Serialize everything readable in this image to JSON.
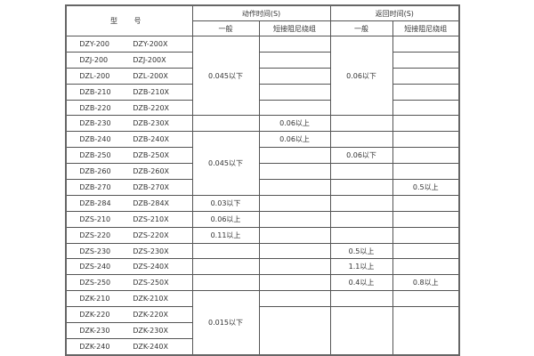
{
  "header": {
    "model": "型 号",
    "action_time": "动作时间(S)",
    "return_time": "返回时间(S)",
    "general": "一般",
    "short_damping": "短接阻尼绕组"
  },
  "rows": [
    {
      "model": [
        "DZY-200",
        "DZY-200X"
      ],
      "cells": [
        {
          "text": "0.045以下",
          "rowspan": 5
        },
        {
          "text": ""
        },
        {
          "text": "0.06以下",
          "rowspan": 5
        },
        {
          "text": ""
        }
      ]
    },
    {
      "model": [
        "DZJ-200",
        "DZJ-200X"
      ],
      "cells": [
        {
          "text": ""
        },
        {
          "text": ""
        }
      ]
    },
    {
      "model": [
        "DZL-200",
        "DZL-200X"
      ],
      "cells": [
        {
          "text": ""
        },
        {
          "text": ""
        }
      ]
    },
    {
      "model": [
        "DZB-210",
        "DZB-210X"
      ],
      "cells": [
        {
          "text": ""
        },
        {
          "text": ""
        }
      ]
    },
    {
      "model": [
        "DZB-220",
        "DZB-220X"
      ],
      "cells": [
        {
          "text": ""
        },
        {
          "text": ""
        }
      ]
    },
    {
      "model": [
        "DZB-230",
        "DZB-230X"
      ],
      "cells": [
        {
          "text": ""
        },
        {
          "text": "0.06以上"
        },
        {
          "text": ""
        },
        {
          "text": ""
        }
      ]
    },
    {
      "model": [
        "DZB-240",
        "DZB-240X"
      ],
      "cells": [
        {
          "text": "0.045以下",
          "rowspan": 4
        },
        {
          "text": "0.06以上"
        },
        {
          "text": ""
        },
        {
          "text": ""
        }
      ]
    },
    {
      "model": [
        "DZB-250",
        "DZB-250X"
      ],
      "cells": [
        {
          "text": ""
        },
        {
          "text": "0.06以下"
        },
        {
          "text": ""
        }
      ]
    },
    {
      "model": [
        "DZB-260",
        "DZB-260X"
      ],
      "cells": [
        {
          "text": ""
        },
        {
          "text": ""
        },
        {
          "text": ""
        }
      ]
    },
    {
      "model": [
        "DZB-270",
        "DZB-270X"
      ],
      "cells": [
        {
          "text": ""
        },
        {
          "text": ""
        },
        {
          "text": "0.5以上"
        }
      ]
    },
    {
      "model": [
        "DZB-284",
        "DZB-284X"
      ],
      "cells": [
        {
          "text": "0.03以下"
        },
        {
          "text": ""
        },
        {
          "text": ""
        },
        {
          "text": ""
        }
      ]
    },
    {
      "model": [
        "DZS-210",
        "DZS-210X"
      ],
      "cells": [
        {
          "text": "0.06以上"
        },
        {
          "text": ""
        },
        {
          "text": ""
        },
        {
          "text": ""
        }
      ]
    },
    {
      "model": [
        "DZS-220",
        "DZS-220X"
      ],
      "cells": [
        {
          "text": "0.11以上"
        },
        {
          "text": ""
        },
        {
          "text": ""
        },
        {
          "text": ""
        }
      ]
    },
    {
      "model": [
        "DZS-230",
        "DZS-230X"
      ],
      "cells": [
        {
          "text": ""
        },
        {
          "text": ""
        },
        {
          "text": "0.5以上"
        },
        {
          "text": ""
        }
      ]
    },
    {
      "model": [
        "DZS-240",
        "DZS-240X"
      ],
      "cells": [
        {
          "text": ""
        },
        {
          "text": ""
        },
        {
          "text": "1.1以上"
        },
        {
          "text": ""
        }
      ]
    },
    {
      "model": [
        "DZS-250",
        "DZS-250X"
      ],
      "cells": [
        {
          "text": ""
        },
        {
          "text": ""
        },
        {
          "text": "0.4以上"
        },
        {
          "text": "0.8以上"
        }
      ]
    },
    {
      "model": [
        "DZK-210",
        "DZK-210X"
      ],
      "cells": [
        {
          "text": "0.015以下",
          "rowspan": 4
        },
        {
          "text": ""
        },
        {
          "text": ""
        },
        {
          "text": ""
        }
      ]
    },
    {
      "model": [
        "DZK-220",
        "DZK-220X"
      ],
      "cells": [
        {
          "text": "",
          "rowspan": 3
        },
        {
          "text": "",
          "rowspan": 3
        },
        {
          "text": "",
          "rowspan": 3
        }
      ]
    },
    {
      "model": [
        "DZK-230",
        "DZK-230X"
      ],
      "cells": []
    },
    {
      "model": [
        "DZK-240",
        "DZK-240X"
      ],
      "cells": []
    }
  ]
}
